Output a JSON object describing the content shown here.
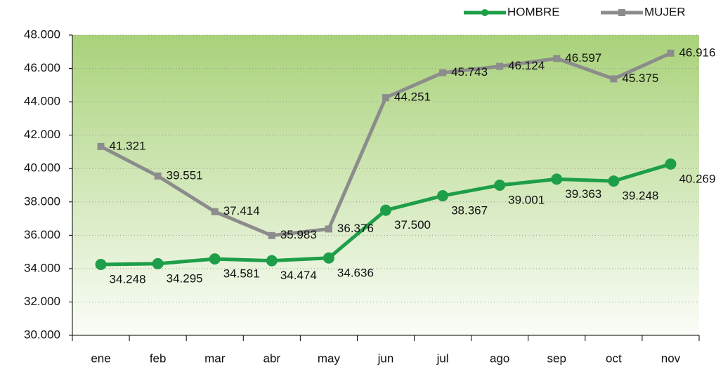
{
  "chart_data": {
    "type": "line",
    "categories": [
      "ene",
      "feb",
      "mar",
      "abr",
      "may",
      "jun",
      "jul",
      "ago",
      "sep",
      "oct",
      "nov"
    ],
    "series": [
      {
        "name": "HOMBRE",
        "color": "#1e9e48",
        "marker": "circle",
        "values": [
          34248,
          34295,
          34581,
          34474,
          34636,
          37500,
          38367,
          39001,
          39363,
          39248,
          40269
        ],
        "value_labels": [
          "34.248",
          "34.295",
          "34.581",
          "34.474",
          "34.636",
          "37.500",
          "38.367",
          "39.001",
          "39.363",
          "39.248",
          "40.269"
        ]
      },
      {
        "name": "MUJER",
        "color": "#8c8c8c",
        "marker": "square",
        "values": [
          41321,
          39551,
          37414,
          35983,
          36376,
          44251,
          45743,
          46124,
          46597,
          45375,
          46916
        ],
        "value_labels": [
          "41.321",
          "39.551",
          "37.414",
          "35.983",
          "36.376",
          "44.251",
          "45.743",
          "46.124",
          "46.597",
          "45.375",
          "46.916"
        ]
      }
    ],
    "ylim": [
      30000,
      48000
    ],
    "yticks": [
      {
        "value": 30000,
        "label": "30.000"
      },
      {
        "value": 32000,
        "label": "32.000"
      },
      {
        "value": 34000,
        "label": "34.000"
      },
      {
        "value": 36000,
        "label": "36.000"
      },
      {
        "value": 38000,
        "label": "38.000"
      },
      {
        "value": 40000,
        "label": "40.000"
      },
      {
        "value": 42000,
        "label": "42.000"
      },
      {
        "value": 44000,
        "label": "44.000"
      },
      {
        "value": 46000,
        "label": "46.000"
      },
      {
        "value": 48000,
        "label": "48.000"
      }
    ],
    "grid": true,
    "legend": "top-right"
  }
}
